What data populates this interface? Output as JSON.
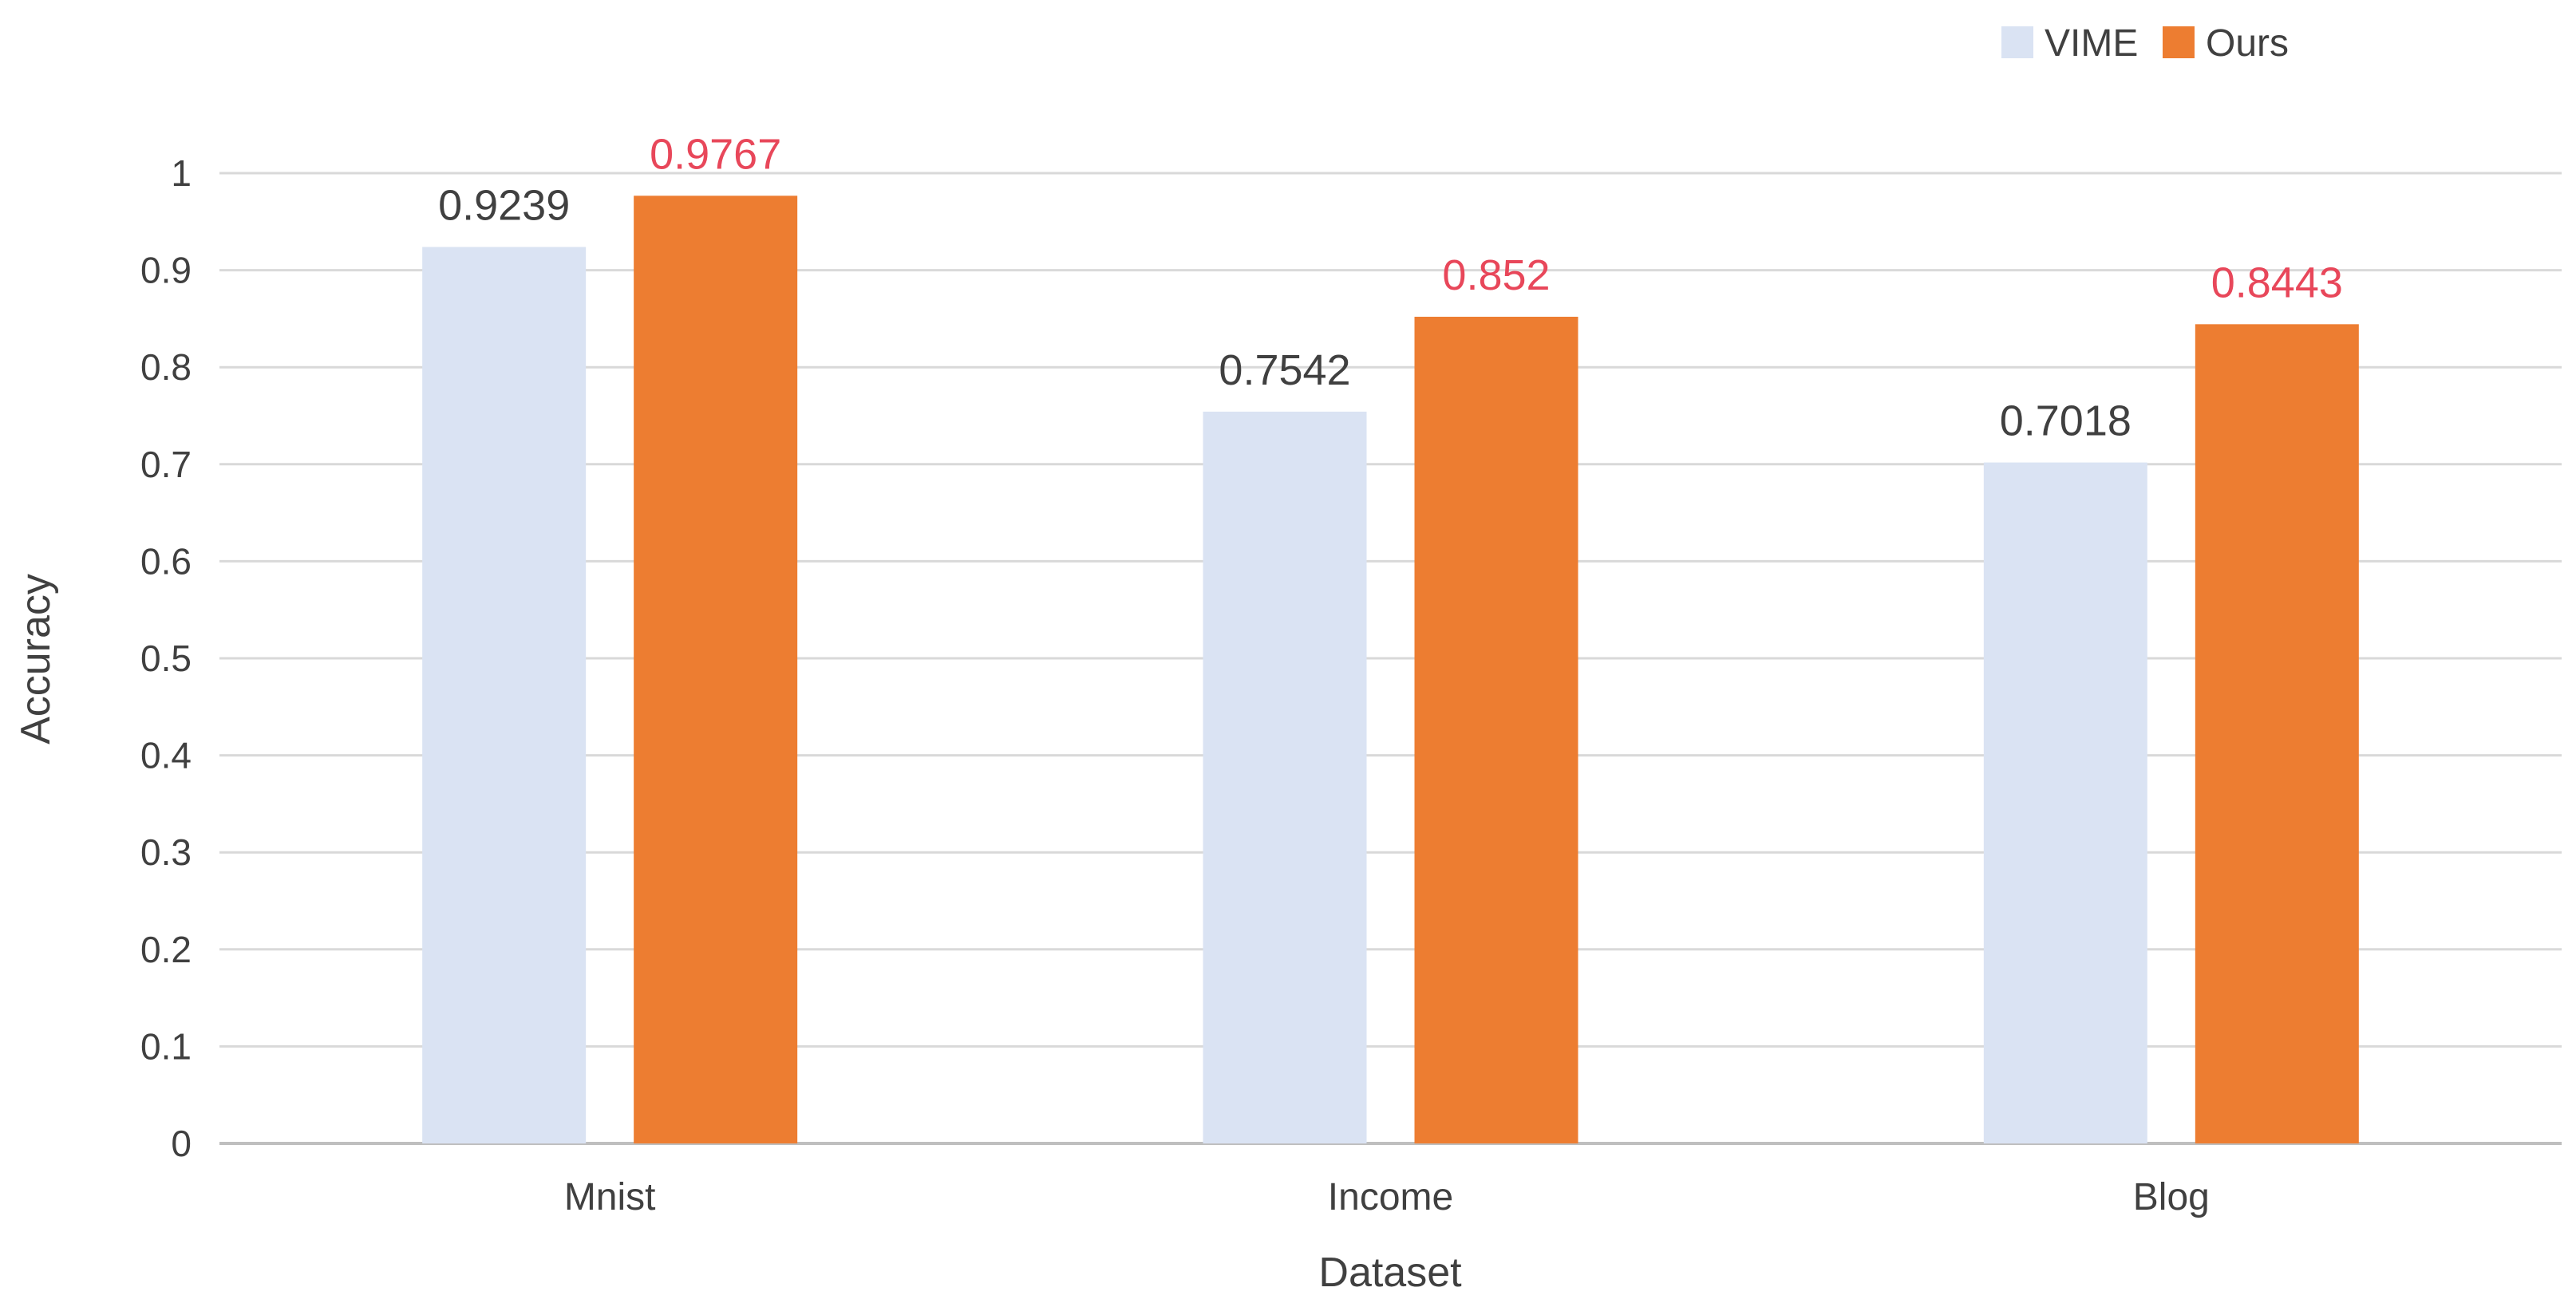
{
  "chart_data": {
    "type": "bar",
    "categories": [
      "Mnist",
      "Income",
      "Blog"
    ],
    "series": [
      {
        "name": "VIME",
        "values": [
          0.9239,
          0.7542,
          0.7018
        ],
        "labels": [
          "0.9239",
          "0.7542",
          "0.7018"
        ],
        "color": "#dae3f3",
        "label_color": "#404040"
      },
      {
        "name": "Ours",
        "values": [
          0.9767,
          0.852,
          0.8443
        ],
        "labels": [
          "0.9767",
          "0.852",
          "0.8443"
        ],
        "color": "#ed7d31",
        "label_color": "#e8475a"
      }
    ],
    "xlabel": "Dataset",
    "ylabel": "Accuracy",
    "ylim": [
      0,
      1
    ],
    "yticks": [
      0,
      0.1,
      0.2,
      0.3,
      0.4,
      0.5,
      0.6,
      0.7,
      0.8,
      0.9,
      1
    ],
    "ytick_labels": [
      "0",
      "0.1",
      "0.2",
      "0.3",
      "0.4",
      "0.5",
      "0.6",
      "0.7",
      "0.8",
      "0.9",
      "1"
    ],
    "grid": true,
    "legend_position": "top-right",
    "grid_color": "#d9d9d9",
    "axis_color": "#bfbfbf"
  }
}
